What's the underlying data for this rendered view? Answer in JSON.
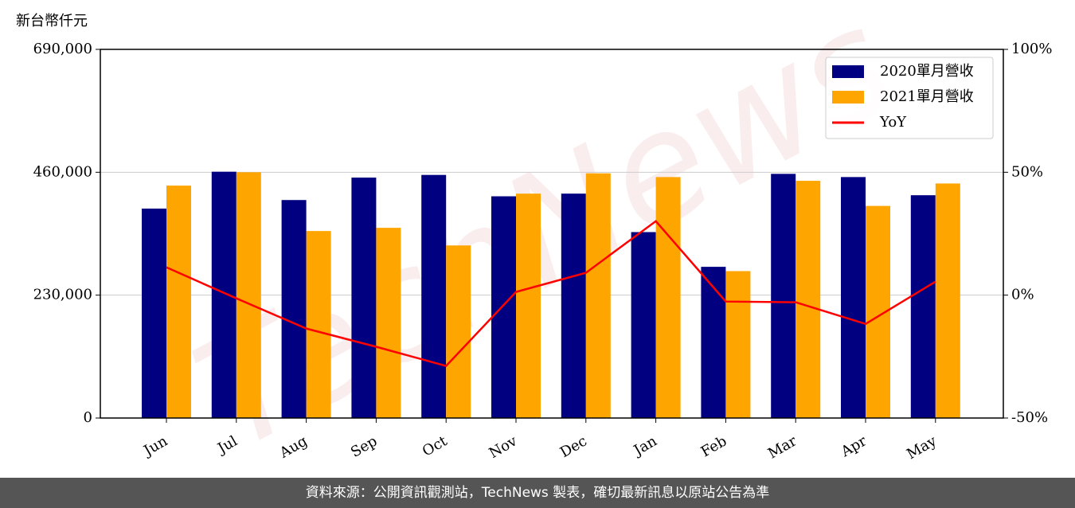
{
  "chart_data": {
    "type": "bar_line",
    "y_label": "新台幣仟元",
    "watermark": "TechNews",
    "footer": "資料來源：公開資訊觀測站，TechNews 製表，確切最新訊息以原站公告為準",
    "categories": [
      "Jun",
      "Jul",
      "Aug",
      "Sep",
      "Oct",
      "Nov",
      "Dec",
      "Jan",
      "Feb",
      "Mar",
      "Apr",
      "May"
    ],
    "series": [
      {
        "name": "2020單月營收",
        "color": "#000080",
        "kind": "bar",
        "values": [
          392000,
          461000,
          408000,
          450000,
          455000,
          415000,
          420000,
          348000,
          283000,
          457000,
          451000,
          417000
        ]
      },
      {
        "name": "2021單月營收",
        "color": "#ffa500",
        "kind": "bar",
        "values": [
          435000,
          460000,
          350000,
          356000,
          323000,
          420000,
          458000,
          451000,
          275000,
          444000,
          397000,
          439000
        ]
      },
      {
        "name": "YoY",
        "color": "#ff0000",
        "kind": "line",
        "axis": "y2",
        "values": [
          11.3,
          -1.3,
          -13.6,
          -21,
          -28.8,
          1.3,
          9.1,
          30.1,
          -2.6,
          -2.9,
          -11.7,
          5.5
        ]
      }
    ],
    "ylim": [
      0,
      690000
    ],
    "yticks": [
      0,
      {
        "value": 230000,
        "label": "230,000"
      },
      {
        "value": 460000,
        "label": "460,000"
      },
      {
        "value": 690000,
        "label": "690,000"
      }
    ],
    "y2lim": [
      -50,
      100
    ],
    "y2ticks": [
      {
        "value": -50,
        "label": "-50%"
      },
      {
        "value": 0,
        "label": "0%"
      },
      {
        "value": 50,
        "label": "50%"
      },
      {
        "value": 100,
        "label": "100%"
      }
    ],
    "grid": true,
    "legend": "upper right"
  }
}
